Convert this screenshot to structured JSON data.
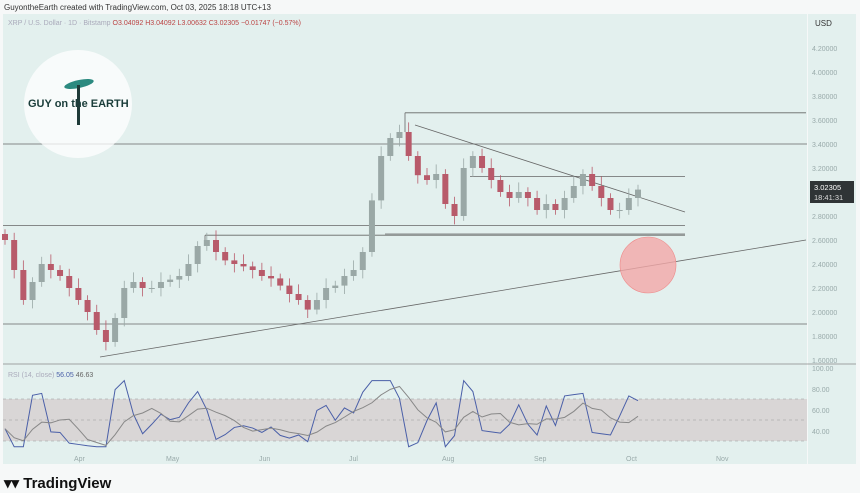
{
  "header": "GuyontheEarth created with TradingView.com, Oct 03, 2025 18:18 UTC+13",
  "symbol": {
    "name": "XRP / U.S. Dollar · 1D · Bitstamp",
    "open": "O3.04092",
    "high": "H3.04092",
    "low": "L3.00632",
    "close": "C3.02305",
    "change": "−0.01747 (−0.57%)"
  },
  "currency": "USD",
  "last_price": {
    "value": "3.02305",
    "countdown": "18:41:31"
  },
  "rsi": {
    "label": "RSI (14, close)",
    "value": "56.05",
    "ma": "46.63"
  },
  "watermark": "GUY on the EARTH",
  "brand": "TradingView",
  "colors": {
    "up": "#9aa8a6",
    "down": "#b85a6a",
    "rsi": "#4a5fa8",
    "circle": "#f2a8a8"
  },
  "chart_data": {
    "type": "candlestick",
    "ylim": [
      1.6,
      4.2
    ],
    "y_ticks": [
      "4.20000",
      "4.00000",
      "3.80000",
      "3.60000",
      "3.40000",
      "3.20000",
      "2.80000",
      "2.60000",
      "2.40000",
      "2.20000",
      "2.00000",
      "1.80000",
      "1.60000"
    ],
    "rsi_ticks": [
      "100.00",
      "80.00",
      "60.00",
      "40.00"
    ],
    "x_ticks": [
      "Apr",
      "May",
      "Jun",
      "Jul",
      "Aug",
      "Sep",
      "Oct",
      "Nov"
    ],
    "closes_approx": [
      2.6,
      2.35,
      2.1,
      2.25,
      2.4,
      2.35,
      2.3,
      2.2,
      2.1,
      2.0,
      1.85,
      1.75,
      1.95,
      2.2,
      2.25,
      2.2,
      2.2,
      2.25,
      2.27,
      2.3,
      2.4,
      2.55,
      2.6,
      2.5,
      2.43,
      2.4,
      2.38,
      2.35,
      2.3,
      2.28,
      2.22,
      2.15,
      2.1,
      2.02,
      2.1,
      2.2,
      2.22,
      2.3,
      2.35,
      2.5,
      2.93,
      3.3,
      3.45,
      3.5,
      3.3,
      3.14,
      3.1,
      3.15,
      2.9,
      2.8,
      3.2,
      3.3,
      3.2,
      3.1,
      3.0,
      2.95,
      3.0,
      2.95,
      2.85,
      2.9,
      2.85,
      2.95,
      3.05,
      3.15,
      3.05,
      2.95,
      2.85,
      2.85,
      2.95,
      3.02
    ],
    "levels": [
      3.66,
      3.4,
      3.13,
      2.72,
      2.65,
      1.9
    ],
    "trendlines": [
      {
        "from": [
          "Jul 14",
          3.55
        ],
        "to": [
          "Oct 20",
          2.85
        ]
      },
      {
        "from": [
          "Apr 7",
          1.62
        ],
        "to": [
          "Nov 15",
          2.6
        ]
      }
    ]
  }
}
